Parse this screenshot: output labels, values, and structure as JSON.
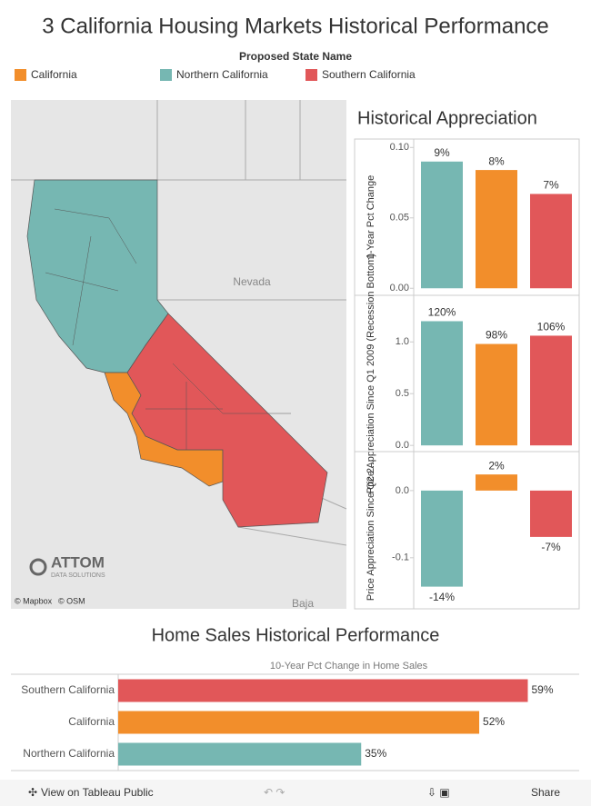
{
  "title": "3 California Housing Markets Historical Performance",
  "legend": {
    "title": "Proposed State Name",
    "items": [
      {
        "name": "California",
        "color": "#f28e2b"
      },
      {
        "name": "Northern California",
        "color": "#76b7b2"
      },
      {
        "name": "Southern California",
        "color": "#e15759"
      }
    ]
  },
  "map": {
    "labels": [
      "Nevada",
      "Baja"
    ],
    "credits": [
      "© Mapbox",
      "© OSM"
    ],
    "logo": "ATTOM",
    "logo_sub": "DATA SOLUTIONS"
  },
  "section_title": "Historical Appreciation",
  "chart_data": [
    {
      "type": "bar",
      "ylabel": "1-Year Pct Change",
      "values": [
        0.09,
        0.084,
        0.067
      ],
      "value_labels": [
        "9%",
        "8%",
        "7%"
      ],
      "colors": [
        "#76b7b2",
        "#f28e2b",
        "#e15759"
      ],
      "ylim": [
        -0.005,
        0.106
      ],
      "yticks": [
        {
          "value": 0,
          "label": "0.00"
        },
        {
          "value": 0.05,
          "label": "0.05"
        },
        {
          "value": 0.1,
          "label": "0.10"
        }
      ]
    },
    {
      "type": "bar",
      "ylabel": "Price Appreciation Since Q1 2009 (Recession Bottom)",
      "values": [
        1.2,
        0.98,
        1.06
      ],
      "value_labels": [
        "120%",
        "98%",
        "106%"
      ],
      "colors": [
        "#76b7b2",
        "#f28e2b",
        "#e15759"
      ],
      "ylim": [
        -0.06,
        1.45
      ],
      "yticks": [
        {
          "value": 0,
          "label": "0.0"
        },
        {
          "value": 0.5,
          "label": "0.5"
        },
        {
          "value": 1,
          "label": "1.0"
        }
      ]
    },
    {
      "type": "bar",
      "ylabel": "Price Appreciation Since Q2 2...",
      "values": [
        -0.143,
        0.024,
        -0.069
      ],
      "value_labels": [
        "-14%",
        "2%",
        "-7%"
      ],
      "colors": [
        "#76b7b2",
        "#f28e2b",
        "#e15759"
      ],
      "ylim": [
        -0.176,
        0.058
      ],
      "yticks": [
        {
          "value": 0,
          "label": "0.0"
        },
        {
          "value": -0.1,
          "label": "-0.1"
        }
      ]
    },
    {
      "type": "hbar",
      "title": "Home Sales Historical Performance",
      "xlabel": "10-Year Pct Change in Home Sales",
      "categories": [
        "Southern California",
        "California",
        "Northern California"
      ],
      "values": [
        0.59,
        0.52,
        0.35
      ],
      "value_labels": [
        "59%",
        "52%",
        "35%"
      ],
      "colors": [
        "#e15759",
        "#f28e2b",
        "#76b7b2"
      ],
      "xlim": [
        0,
        0.664
      ]
    }
  ],
  "toolbar": {
    "view": "View on Tableau Public",
    "share": "Share"
  }
}
